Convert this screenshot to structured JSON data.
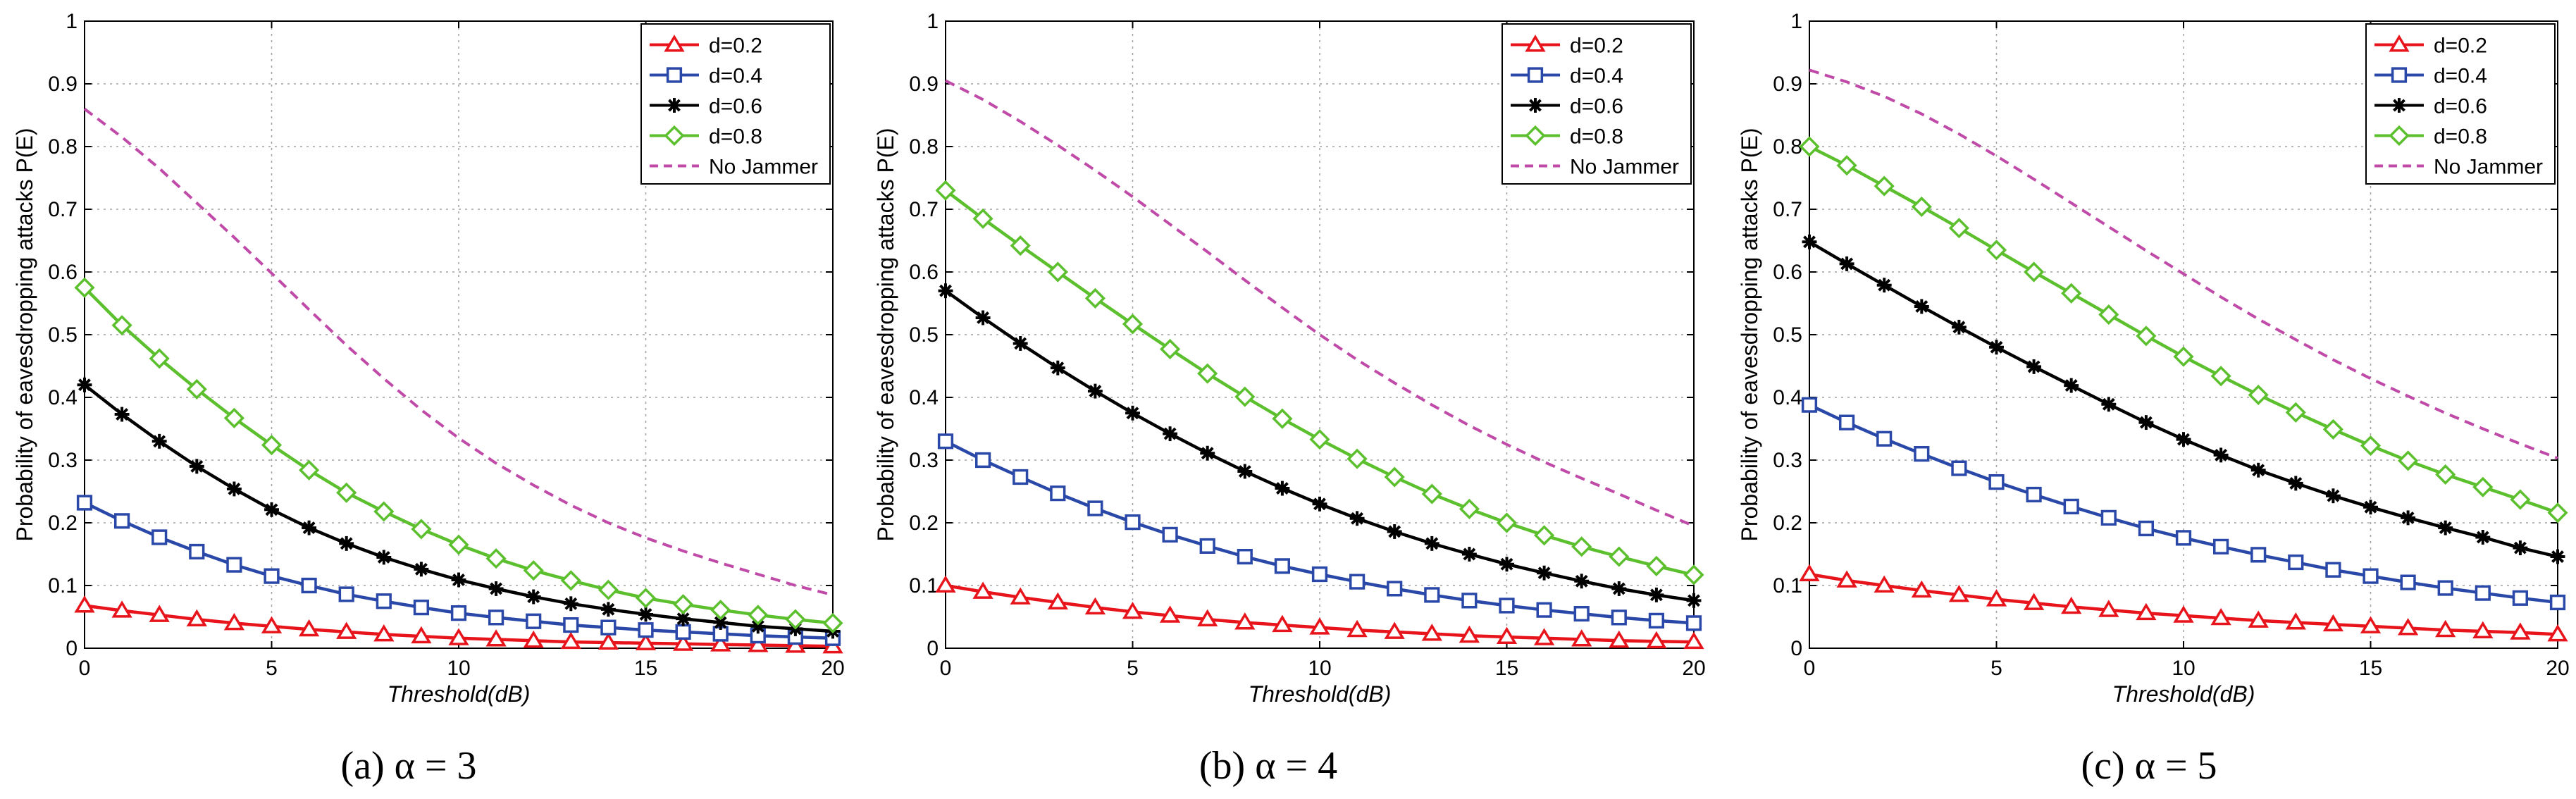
{
  "chart_data": [
    {
      "type": "line",
      "caption": "(a) α = 3",
      "xlabel": "Threshold(dB)",
      "ylabel": "Probability of eavesdropping attacks P(E)",
      "xlim": [
        0,
        20
      ],
      "ylim": [
        0,
        1
      ],
      "xticks": [
        "0",
        "5",
        "10",
        "15",
        "20"
      ],
      "yticks": [
        "0",
        "0.1",
        "0.2",
        "0.3",
        "0.4",
        "0.5",
        "0.6",
        "0.7",
        "0.8",
        "0.9",
        "1"
      ],
      "grid": true,
      "legend_position": "top-right",
      "series": [
        {
          "name": "d=0.2",
          "marker": "triangle",
          "color": "#e8141c",
          "x": [
            0,
            1,
            2,
            3,
            4,
            5,
            6,
            7,
            8,
            9,
            10,
            11,
            12,
            13,
            14,
            15,
            16,
            17,
            18,
            19,
            20
          ],
          "values": [
            0.068,
            0.06,
            0.053,
            0.046,
            0.04,
            0.035,
            0.03,
            0.026,
            0.022,
            0.019,
            0.016,
            0.014,
            0.012,
            0.01,
            0.009,
            0.008,
            0.007,
            0.006,
            0.005,
            0.004,
            0.003
          ]
        },
        {
          "name": "d=0.4",
          "marker": "square",
          "color": "#2a48a8",
          "x": [
            0,
            1,
            2,
            3,
            4,
            5,
            6,
            7,
            8,
            9,
            10,
            11,
            12,
            13,
            14,
            15,
            16,
            17,
            18,
            19,
            20
          ],
          "values": [
            0.232,
            0.203,
            0.177,
            0.154,
            0.133,
            0.115,
            0.1,
            0.086,
            0.075,
            0.065,
            0.056,
            0.049,
            0.043,
            0.037,
            0.033,
            0.029,
            0.026,
            0.023,
            0.02,
            0.018,
            0.016
          ]
        },
        {
          "name": "d=0.6",
          "marker": "star",
          "color": "#000000",
          "x": [
            0,
            1,
            2,
            3,
            4,
            5,
            6,
            7,
            8,
            9,
            10,
            11,
            12,
            13,
            14,
            15,
            16,
            17,
            18,
            19,
            20
          ],
          "values": [
            0.42,
            0.373,
            0.33,
            0.29,
            0.254,
            0.221,
            0.192,
            0.167,
            0.145,
            0.126,
            0.109,
            0.095,
            0.082,
            0.071,
            0.062,
            0.054,
            0.047,
            0.041,
            0.035,
            0.031,
            0.027
          ]
        },
        {
          "name": "d=0.8",
          "marker": "diamond",
          "color": "#5cc02e",
          "x": [
            0,
            1,
            2,
            3,
            4,
            5,
            6,
            7,
            8,
            9,
            10,
            11,
            12,
            13,
            14,
            15,
            16,
            17,
            18,
            19,
            20
          ],
          "values": [
            0.575,
            0.515,
            0.462,
            0.413,
            0.367,
            0.324,
            0.284,
            0.248,
            0.218,
            0.19,
            0.165,
            0.143,
            0.124,
            0.108,
            0.093,
            0.08,
            0.07,
            0.061,
            0.053,
            0.046,
            0.04
          ]
        },
        {
          "name": "No Jammer",
          "marker": "none",
          "dashed": true,
          "color": "#c04aa8",
          "x": [
            0,
            1,
            2,
            3,
            4,
            5,
            6,
            7,
            8,
            9,
            10,
            11,
            12,
            13,
            14,
            15,
            16,
            17,
            18,
            19,
            20
          ],
          "values": [
            0.86,
            0.815,
            0.765,
            0.71,
            0.655,
            0.598,
            0.54,
            0.483,
            0.43,
            0.38,
            0.335,
            0.295,
            0.26,
            0.228,
            0.2,
            0.176,
            0.155,
            0.136,
            0.118,
            0.1,
            0.085
          ]
        }
      ]
    },
    {
      "type": "line",
      "caption": "(b) α = 4",
      "xlabel": "Threshold(dB)",
      "ylabel": "Probability of eavesdropping attacks P(E)",
      "xlim": [
        0,
        20
      ],
      "ylim": [
        0,
        1
      ],
      "xticks": [
        "0",
        "5",
        "10",
        "15",
        "20"
      ],
      "yticks": [
        "0",
        "0.1",
        "0.2",
        "0.3",
        "0.4",
        "0.5",
        "0.6",
        "0.7",
        "0.8",
        "0.9",
        "1"
      ],
      "grid": true,
      "legend_position": "top-right",
      "series": [
        {
          "name": "d=0.2",
          "marker": "triangle",
          "color": "#e8141c",
          "x": [
            0,
            1,
            2,
            3,
            4,
            5,
            6,
            7,
            8,
            9,
            10,
            11,
            12,
            13,
            14,
            15,
            16,
            17,
            18,
            19,
            20
          ],
          "values": [
            0.1,
            0.09,
            0.081,
            0.073,
            0.065,
            0.058,
            0.052,
            0.046,
            0.041,
            0.037,
            0.033,
            0.029,
            0.026,
            0.023,
            0.02,
            0.018,
            0.016,
            0.014,
            0.012,
            0.011,
            0.01
          ]
        },
        {
          "name": "d=0.4",
          "marker": "square",
          "color": "#2a48a8",
          "x": [
            0,
            1,
            2,
            3,
            4,
            5,
            6,
            7,
            8,
            9,
            10,
            11,
            12,
            13,
            14,
            15,
            16,
            17,
            18,
            19,
            20
          ],
          "values": [
            0.33,
            0.3,
            0.273,
            0.247,
            0.223,
            0.201,
            0.181,
            0.163,
            0.146,
            0.131,
            0.118,
            0.106,
            0.095,
            0.085,
            0.076,
            0.068,
            0.061,
            0.055,
            0.049,
            0.044,
            0.04
          ]
        },
        {
          "name": "d=0.6",
          "marker": "star",
          "color": "#000000",
          "x": [
            0,
            1,
            2,
            3,
            4,
            5,
            6,
            7,
            8,
            9,
            10,
            11,
            12,
            13,
            14,
            15,
            16,
            17,
            18,
            19,
            20
          ],
          "values": [
            0.57,
            0.527,
            0.486,
            0.447,
            0.41,
            0.375,
            0.342,
            0.311,
            0.282,
            0.255,
            0.23,
            0.207,
            0.186,
            0.167,
            0.15,
            0.134,
            0.12,
            0.107,
            0.095,
            0.085,
            0.076
          ]
        },
        {
          "name": "d=0.8",
          "marker": "diamond",
          "color": "#5cc02e",
          "x": [
            0,
            1,
            2,
            3,
            4,
            5,
            6,
            7,
            8,
            9,
            10,
            11,
            12,
            13,
            14,
            15,
            16,
            17,
            18,
            19,
            20
          ],
          "values": [
            0.73,
            0.685,
            0.642,
            0.6,
            0.558,
            0.517,
            0.477,
            0.438,
            0.401,
            0.366,
            0.333,
            0.302,
            0.273,
            0.246,
            0.222,
            0.2,
            0.18,
            0.162,
            0.146,
            0.131,
            0.117
          ]
        },
        {
          "name": "No Jammer",
          "marker": "none",
          "dashed": true,
          "color": "#c04aa8",
          "x": [
            0,
            1,
            2,
            3,
            4,
            5,
            6,
            7,
            8,
            9,
            10,
            11,
            12,
            13,
            14,
            15,
            16,
            17,
            18,
            19,
            20
          ],
          "values": [
            0.905,
            0.875,
            0.84,
            0.802,
            0.762,
            0.72,
            0.676,
            0.632,
            0.587,
            0.543,
            0.5,
            0.46,
            0.423,
            0.388,
            0.355,
            0.325,
            0.297,
            0.271,
            0.246,
            0.22,
            0.195
          ]
        }
      ]
    },
    {
      "type": "line",
      "caption": "(c) α = 5",
      "xlabel": "Threshold(dB)",
      "ylabel": "Probability of eavesdropping attacks P(E)",
      "xlim": [
        0,
        20
      ],
      "ylim": [
        0,
        1
      ],
      "xticks": [
        "0",
        "5",
        "10",
        "15",
        "20"
      ],
      "yticks": [
        "0",
        "0.1",
        "0.2",
        "0.3",
        "0.4",
        "0.5",
        "0.6",
        "0.7",
        "0.8",
        "0.9",
        "1"
      ],
      "grid": true,
      "legend_position": "top-right",
      "series": [
        {
          "name": "d=0.2",
          "marker": "triangle",
          "color": "#e8141c",
          "x": [
            0,
            1,
            2,
            3,
            4,
            5,
            6,
            7,
            8,
            9,
            10,
            11,
            12,
            13,
            14,
            15,
            16,
            17,
            18,
            19,
            20
          ],
          "values": [
            0.118,
            0.108,
            0.1,
            0.092,
            0.085,
            0.078,
            0.072,
            0.066,
            0.061,
            0.056,
            0.052,
            0.048,
            0.044,
            0.041,
            0.038,
            0.035,
            0.032,
            0.029,
            0.027,
            0.025,
            0.022
          ]
        },
        {
          "name": "d=0.4",
          "marker": "square",
          "color": "#2a48a8",
          "x": [
            0,
            1,
            2,
            3,
            4,
            5,
            6,
            7,
            8,
            9,
            10,
            11,
            12,
            13,
            14,
            15,
            16,
            17,
            18,
            19,
            20
          ],
          "values": [
            0.388,
            0.36,
            0.334,
            0.31,
            0.287,
            0.265,
            0.245,
            0.226,
            0.208,
            0.191,
            0.176,
            0.162,
            0.149,
            0.137,
            0.125,
            0.115,
            0.105,
            0.096,
            0.088,
            0.08,
            0.073
          ]
        },
        {
          "name": "d=0.6",
          "marker": "star",
          "color": "#000000",
          "x": [
            0,
            1,
            2,
            3,
            4,
            5,
            6,
            7,
            8,
            9,
            10,
            11,
            12,
            13,
            14,
            15,
            16,
            17,
            18,
            19,
            20
          ],
          "values": [
            0.648,
            0.613,
            0.579,
            0.545,
            0.512,
            0.48,
            0.449,
            0.419,
            0.389,
            0.36,
            0.333,
            0.308,
            0.284,
            0.263,
            0.243,
            0.225,
            0.208,
            0.192,
            0.177,
            0.16,
            0.146
          ]
        },
        {
          "name": "d=0.8",
          "marker": "diamond",
          "color": "#5cc02e",
          "x": [
            0,
            1,
            2,
            3,
            4,
            5,
            6,
            7,
            8,
            9,
            10,
            11,
            12,
            13,
            14,
            15,
            16,
            17,
            18,
            19,
            20
          ],
          "values": [
            0.8,
            0.77,
            0.737,
            0.704,
            0.67,
            0.635,
            0.6,
            0.566,
            0.532,
            0.498,
            0.465,
            0.434,
            0.404,
            0.376,
            0.349,
            0.323,
            0.299,
            0.277,
            0.257,
            0.237,
            0.216
          ]
        },
        {
          "name": "No Jammer",
          "marker": "none",
          "dashed": true,
          "color": "#c04aa8",
          "x": [
            0,
            1,
            2,
            3,
            4,
            5,
            6,
            7,
            8,
            9,
            10,
            11,
            12,
            13,
            14,
            15,
            16,
            17,
            18,
            19,
            20
          ],
          "values": [
            0.922,
            0.903,
            0.88,
            0.852,
            0.82,
            0.785,
            0.748,
            0.71,
            0.672,
            0.634,
            0.597,
            0.56,
            0.525,
            0.492,
            0.46,
            0.43,
            0.402,
            0.375,
            0.35,
            0.326,
            0.303
          ]
        }
      ]
    }
  ]
}
